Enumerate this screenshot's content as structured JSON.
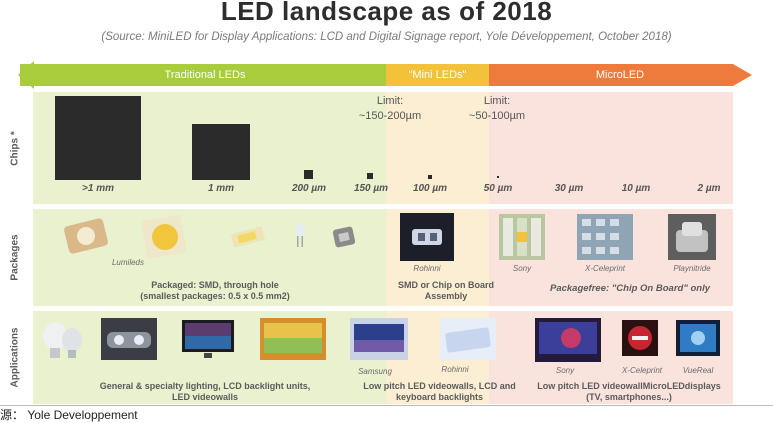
{
  "title": "LED landscape as of 2018",
  "source": "(Source: MiniLED for Display Applications: LCD and Digital Signage report, Yole Développement, October 2018)",
  "categories": {
    "traditional": "Traditional LEDs",
    "mini": "\"Mini LEDs\"",
    "micro": "MicroLED"
  },
  "colors": {
    "traditional": "#a9cc3c",
    "mini": "#f3c23b",
    "micro": "#ee7b3c"
  },
  "rows": {
    "chips": "Chips *",
    "packages": "Packages",
    "applications": "Applications"
  },
  "chips": {
    "sizes": [
      ">1 mm",
      "1 mm",
      "200 µm",
      "150 µm",
      "100 µm",
      "50 µm",
      "30 µm",
      "10 µm",
      "2 µm"
    ],
    "limit1": {
      "title": "Limit:",
      "value": "~150-200µm"
    },
    "limit2": {
      "title": "Limit:",
      "value": "~50-100µm"
    }
  },
  "packages": {
    "captions": [
      "Lumileds",
      "Rohinni",
      "Sony",
      "X-Celeprint",
      "Playnitride"
    ],
    "desc_traditional_1": "Packaged: SMD, through hole",
    "desc_traditional_2": "(smallest packages: 0.5 x 0.5 mm2)",
    "desc_mini_1": "SMD or Chip on Board",
    "desc_mini_2": "Assembly",
    "desc_micro": "Packagefree: \"Chip On Board\" only"
  },
  "applications": {
    "captions": [
      "Samsung",
      "Rohinni",
      "Sony",
      "X-Celeprint",
      "VueReal"
    ],
    "desc_traditional_1": "General & specialty lighting, LCD backlight units,",
    "desc_traditional_2": "LED videowalls",
    "desc_mini_1": "Low pitch LED videowalls, LCD and",
    "desc_mini_2": "keyboard backlights",
    "desc_micro_1": "Low pitch LED videowallMicroLEDdisplays",
    "desc_micro_2": "(TV, smartphones...)"
  },
  "footer": "源： Yole Developpement"
}
